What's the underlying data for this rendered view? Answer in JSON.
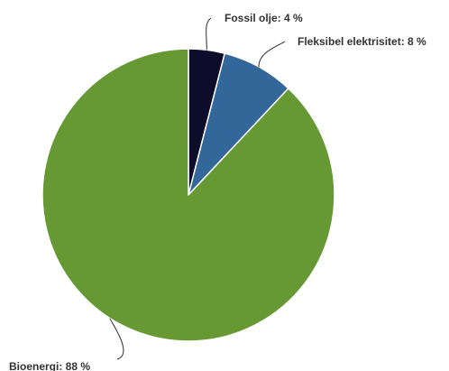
{
  "chart_data": {
    "type": "pie",
    "title": "",
    "slices": [
      {
        "label": "Fossil olje",
        "value": 4,
        "display": "Fossil olje: 4 %",
        "color": "#0d0d2b"
      },
      {
        "label": "Fleksibel elektrisitet",
        "value": 8,
        "display": "Fleksibel elektrisitet: 8 %",
        "color": "#336699"
      },
      {
        "label": "Bioenergi",
        "value": 88,
        "display": "Bioenergi: 88 %",
        "color": "#669933"
      }
    ],
    "legend": "none",
    "start_angle_deg": 0,
    "direction": "clockwise"
  }
}
